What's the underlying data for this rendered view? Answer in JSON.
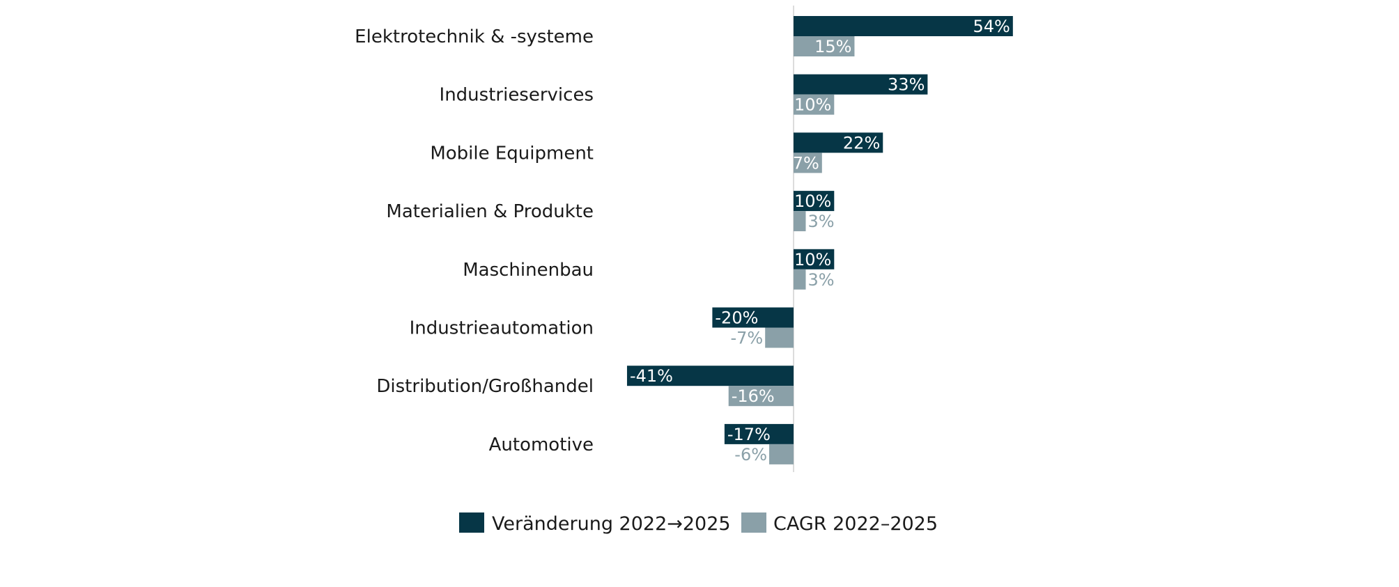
{
  "chart_data": {
    "type": "bar",
    "orientation": "horizontal",
    "categories": [
      "Elektrotechnik & -systeme",
      "Industrieservices",
      "Mobile Equipment",
      "Materialien & Produkte",
      "Maschinenbau",
      "Industrieautomation",
      "Distribution/Großhandel",
      "Automotive"
    ],
    "series": [
      {
        "name": "Veränderung 2022→2025",
        "color": "#063646",
        "values": [
          54,
          33,
          22,
          10,
          10,
          -20,
          -41,
          -17
        ],
        "labels": [
          "54%",
          "33%",
          "22%",
          "10%",
          "10%",
          "-20%",
          "-41%",
          "-17%"
        ]
      },
      {
        "name": "CAGR 2022–2025",
        "color": "#8aa0a8",
        "values": [
          15,
          10,
          7,
          3,
          3,
          -7,
          -16,
          -6
        ],
        "labels": [
          "15%",
          "10%",
          "7%",
          "3%",
          "3%",
          "-7%",
          "-16%",
          "-6%"
        ]
      }
    ],
    "unit": "%",
    "xlim": [
      -45,
      60
    ],
    "grid": false,
    "legend_position": "bottom"
  }
}
